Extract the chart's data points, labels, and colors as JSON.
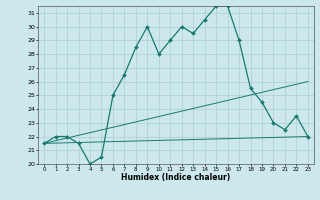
{
  "title": "",
  "xlabel": "Humidex (Indice chaleur)",
  "bg_color": "#cce8ec",
  "grid_color": "#aacdd4",
  "line_color": "#1a7a6e",
  "xlim": [
    -0.5,
    23.5
  ],
  "ylim": [
    20,
    31.5
  ],
  "xticks": [
    0,
    1,
    2,
    3,
    4,
    5,
    6,
    7,
    8,
    9,
    10,
    11,
    12,
    13,
    14,
    15,
    16,
    17,
    18,
    19,
    20,
    21,
    22,
    23
  ],
  "yticks": [
    20,
    21,
    22,
    23,
    24,
    25,
    26,
    27,
    28,
    29,
    30,
    31
  ],
  "main_x": [
    0,
    1,
    2,
    3,
    4,
    5,
    6,
    7,
    8,
    9,
    10,
    11,
    12,
    13,
    14,
    15,
    16,
    17,
    18,
    19,
    20,
    21,
    22,
    23
  ],
  "main_y": [
    21.5,
    22.0,
    22.0,
    21.5,
    20.0,
    20.5,
    25.0,
    26.5,
    28.5,
    30.0,
    28.0,
    29.0,
    30.0,
    29.5,
    30.5,
    31.5,
    31.5,
    29.0,
    25.5,
    24.5,
    23.0,
    22.5,
    23.5,
    22.0
  ],
  "line2_x": [
    0,
    23
  ],
  "line2_y": [
    21.5,
    22.0
  ],
  "line3_x": [
    0,
    23
  ],
  "line3_y": [
    21.5,
    26.0
  ]
}
